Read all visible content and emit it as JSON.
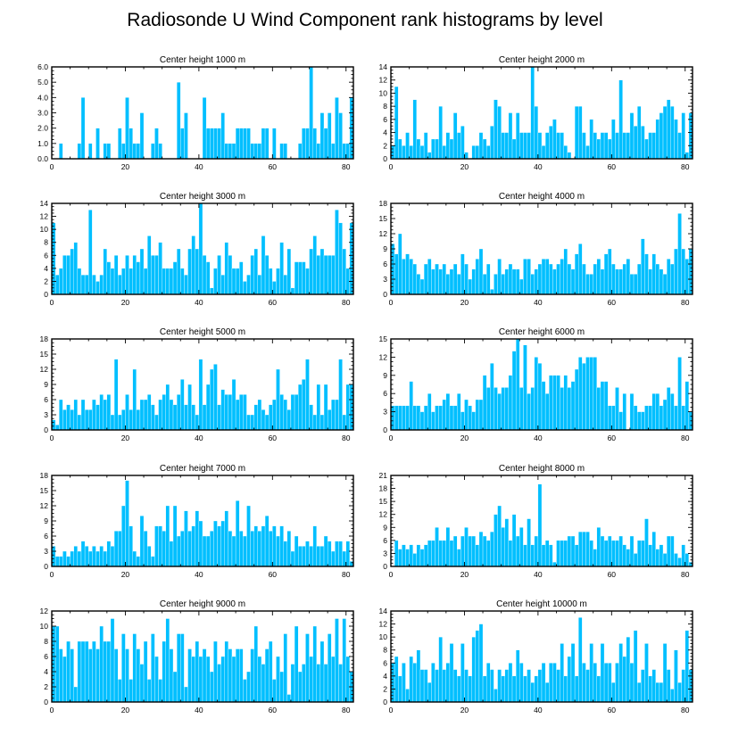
{
  "bar_color": "#00bfff",
  "chart_data": {
    "type": "bar",
    "title": "Radiosonde U Wind Component rank histograms by level",
    "panels": [
      {
        "title": "Center height 1000 m",
        "ylim": [
          0,
          6
        ],
        "yticks": [
          "0.0",
          "1.0",
          "2.0",
          "3.0",
          "4.0",
          "5.0",
          "6.0"
        ],
        "xticks": [
          "0",
          "20",
          "40",
          "60",
          "80"
        ],
        "xlim": [
          0,
          82
        ],
        "values": [
          0,
          0,
          1,
          0,
          0,
          0,
          0,
          1,
          4,
          0,
          1,
          0,
          2,
          0,
          1,
          1,
          0,
          0,
          2,
          1,
          4,
          2,
          1,
          1,
          3,
          0,
          0,
          1,
          2,
          1,
          0,
          0,
          0,
          0,
          5,
          2,
          3,
          0,
          0,
          0,
          0,
          4,
          2,
          2,
          2,
          2,
          3,
          1,
          1,
          1,
          2,
          2,
          2,
          2,
          1,
          1,
          1,
          2,
          2,
          0,
          2,
          0,
          1,
          1,
          0,
          0,
          0,
          1,
          2,
          2,
          6,
          2,
          1,
          3,
          2,
          3,
          1,
          4,
          3,
          1,
          1,
          4
        ]
      },
      {
        "title": "Center height 2000 m",
        "ylim": [
          0,
          14
        ],
        "yticks": [
          "0",
          "2",
          "4",
          "6",
          "8",
          "10",
          "12",
          "14"
        ],
        "xticks": [
          "0",
          "20",
          "40",
          "60",
          "80"
        ],
        "xlim": [
          0,
          82
        ],
        "values": [
          2,
          11,
          3,
          2,
          4,
          2,
          9,
          3,
          2,
          4,
          1,
          3,
          3,
          8,
          2,
          4,
          3,
          7,
          4,
          5,
          1,
          0,
          2,
          2,
          4,
          3,
          2,
          5,
          9,
          8,
          4,
          4,
          7,
          3,
          7,
          4,
          4,
          4,
          14,
          8,
          4,
          2,
          4,
          5,
          6,
          4,
          4,
          2,
          1,
          0,
          8,
          8,
          4,
          2,
          6,
          4,
          3,
          4,
          4,
          3,
          6,
          4,
          12,
          4,
          4,
          7,
          5,
          8,
          5,
          3,
          4,
          4,
          6,
          7,
          8,
          9,
          8,
          6,
          4,
          7,
          1,
          7
        ]
      },
      {
        "title": "Center height 3000 m",
        "ylim": [
          0,
          14
        ],
        "yticks": [
          "0",
          "2",
          "4",
          "6",
          "8",
          "10",
          "12",
          "14"
        ],
        "xticks": [
          "0",
          "20",
          "40",
          "60",
          "80"
        ],
        "xlim": [
          0,
          82
        ],
        "values": [
          11,
          3,
          4,
          6,
          6,
          7,
          8,
          4,
          3,
          3,
          13,
          3,
          2,
          3,
          7,
          5,
          4,
          6,
          3,
          4,
          6,
          4,
          6,
          5,
          7,
          4,
          9,
          6,
          6,
          8,
          4,
          4,
          4,
          5,
          7,
          4,
          3,
          7,
          9,
          7,
          14,
          6,
          5,
          1,
          4,
          6,
          3,
          8,
          6,
          4,
          4,
          5,
          2,
          3,
          6,
          7,
          3,
          9,
          6,
          4,
          2,
          4,
          8,
          3,
          7,
          1,
          5,
          5,
          5,
          4,
          7,
          9,
          6,
          7,
          6,
          6,
          6,
          13,
          11,
          7,
          4,
          11
        ]
      },
      {
        "title": "Center height 4000 m",
        "ylim": [
          0,
          18
        ],
        "yticks": [
          "0",
          "3",
          "6",
          "9",
          "12",
          "15",
          "18"
        ],
        "xticks": [
          "0",
          "20",
          "40",
          "60",
          "80"
        ],
        "xlim": [
          0,
          82
        ],
        "values": [
          10,
          8,
          12,
          7,
          8,
          7,
          6,
          4,
          3,
          6,
          7,
          5,
          6,
          5,
          6,
          4,
          5,
          6,
          4,
          8,
          6,
          3,
          5,
          7,
          9,
          4,
          6,
          1,
          4,
          7,
          4,
          5,
          6,
          5,
          5,
          3,
          7,
          7,
          4,
          5,
          6,
          7,
          7,
          6,
          5,
          6,
          7,
          9,
          6,
          5,
          8,
          10,
          6,
          4,
          4,
          6,
          7,
          5,
          8,
          9,
          6,
          5,
          5,
          6,
          7,
          4,
          4,
          6,
          11,
          8,
          5,
          8,
          6,
          5,
          4,
          7,
          6,
          9,
          16,
          9,
          7,
          9
        ]
      },
      {
        "title": "Center height 5000 m",
        "ylim": [
          0,
          18
        ],
        "yticks": [
          "0",
          "3",
          "6",
          "9",
          "12",
          "15",
          "18"
        ],
        "xticks": [
          "0",
          "20",
          "40",
          "60",
          "80"
        ],
        "xlim": [
          0,
          82
        ],
        "values": [
          2,
          1,
          6,
          4,
          5,
          4,
          6,
          3,
          6,
          4,
          4,
          6,
          5,
          7,
          6,
          7,
          3,
          14,
          3,
          4,
          7,
          4,
          12,
          4,
          6,
          6,
          7,
          5,
          3,
          6,
          7,
          9,
          6,
          5,
          7,
          10,
          5,
          9,
          5,
          3,
          14,
          5,
          9,
          12,
          13,
          5,
          8,
          7,
          7,
          10,
          6,
          7,
          7,
          3,
          3,
          5,
          6,
          4,
          3,
          5,
          6,
          12,
          7,
          6,
          4,
          7,
          7,
          9,
          10,
          14,
          5,
          3,
          9,
          3,
          9,
          4,
          6,
          6,
          14,
          3,
          9,
          9
        ]
      },
      {
        "title": "Center height 6000 m",
        "ylim": [
          0,
          15
        ],
        "yticks": [
          "0",
          "3",
          "6",
          "9",
          "12",
          "15"
        ],
        "xticks": [
          "0",
          "20",
          "40",
          "60",
          "80"
        ],
        "xlim": [
          0,
          82
        ],
        "values": [
          4,
          4,
          4,
          4,
          4,
          8,
          4,
          4,
          3,
          4,
          6,
          3,
          4,
          4,
          5,
          6,
          4,
          4,
          6,
          3,
          5,
          4,
          3,
          5,
          5,
          9,
          7,
          11,
          7,
          6,
          7,
          7,
          9,
          13,
          15,
          7,
          14,
          6,
          7,
          12,
          11,
          8,
          6,
          9,
          9,
          9,
          7,
          9,
          7,
          8,
          10,
          12,
          11,
          12,
          12,
          12,
          7,
          8,
          8,
          4,
          4,
          7,
          3,
          6,
          0,
          6,
          4,
          3,
          3,
          4,
          4,
          6,
          6,
          4,
          5,
          7,
          6,
          4,
          12,
          4,
          8,
          3
        ]
      },
      {
        "title": "Center height 7000 m",
        "ylim": [
          0,
          18
        ],
        "yticks": [
          "0",
          "3",
          "6",
          "9",
          "12",
          "15",
          "18"
        ],
        "xticks": [
          "0",
          "20",
          "40",
          "60",
          "80"
        ],
        "xlim": [
          0,
          82
        ],
        "values": [
          4,
          2,
          2,
          3,
          2,
          3,
          4,
          3,
          5,
          4,
          3,
          4,
          3,
          4,
          3,
          5,
          4,
          7,
          7,
          12,
          17,
          8,
          3,
          2,
          10,
          7,
          4,
          2,
          8,
          8,
          7,
          12,
          5,
          12,
          6,
          7,
          11,
          7,
          8,
          11,
          9,
          6,
          6,
          7,
          9,
          8,
          9,
          11,
          7,
          6,
          13,
          7,
          6,
          12,
          7,
          8,
          7,
          8,
          10,
          7,
          8,
          6,
          8,
          5,
          7,
          3,
          6,
          4,
          4,
          5,
          4,
          8,
          4,
          4,
          6,
          5,
          3,
          5,
          5,
          3,
          5,
          1
        ]
      },
      {
        "title": "Center height 8000 m",
        "ylim": [
          0,
          21
        ],
        "yticks": [
          "0",
          "3",
          "6",
          "9",
          "12",
          "15",
          "18",
          "21"
        ],
        "xticks": [
          "0",
          "20",
          "40",
          "60",
          "80"
        ],
        "xlim": [
          0,
          82
        ],
        "values": [
          0,
          6,
          4,
          5,
          4,
          5,
          3,
          5,
          4,
          5,
          6,
          6,
          9,
          6,
          6,
          9,
          6,
          7,
          4,
          7,
          9,
          7,
          7,
          5,
          8,
          7,
          6,
          8,
          12,
          14,
          9,
          11,
          6,
          12,
          7,
          9,
          5,
          11,
          5,
          7,
          19,
          5,
          6,
          5,
          1,
          6,
          6,
          6,
          7,
          7,
          5,
          8,
          8,
          8,
          6,
          4,
          9,
          7,
          6,
          7,
          6,
          6,
          7,
          5,
          4,
          7,
          3,
          6,
          6,
          11,
          5,
          8,
          4,
          5,
          3,
          7,
          7,
          3,
          2,
          5,
          3,
          1
        ]
      },
      {
        "title": "Center height 9000 m",
        "ylim": [
          0,
          12
        ],
        "yticks": [
          "0",
          "2",
          "4",
          "6",
          "8",
          "10",
          "12"
        ],
        "xticks": [
          "0",
          "20",
          "40",
          "60",
          "80"
        ],
        "xlim": [
          0,
          82
        ],
        "values": [
          10,
          10,
          7,
          6,
          8,
          7,
          2,
          8,
          8,
          8,
          7,
          8,
          7,
          10,
          8,
          8,
          11,
          7,
          3,
          9,
          7,
          3,
          9,
          7,
          5,
          8,
          3,
          9,
          6,
          3,
          8,
          11,
          7,
          4,
          9,
          9,
          2,
          7,
          6,
          8,
          6,
          7,
          6,
          4,
          8,
          5,
          6,
          8,
          7,
          6,
          7,
          7,
          3,
          4,
          7,
          10,
          6,
          5,
          7,
          8,
          3,
          6,
          4,
          9,
          1,
          5,
          10,
          4,
          5,
          9,
          6,
          10,
          5,
          8,
          5,
          9,
          6,
          11,
          5,
          11,
          6,
          4
        ]
      },
      {
        "title": "Center height 10000 m",
        "ylim": [
          0,
          14
        ],
        "yticks": [
          "0",
          "2",
          "4",
          "6",
          "8",
          "10",
          "12",
          "14"
        ],
        "xticks": [
          "0",
          "20",
          "40",
          "60",
          "80"
        ],
        "xlim": [
          0,
          82
        ],
        "values": [
          6,
          7,
          4,
          6,
          2,
          7,
          6,
          8,
          5,
          5,
          3,
          6,
          5,
          10,
          5,
          6,
          9,
          5,
          4,
          9,
          5,
          4,
          10,
          11,
          12,
          4,
          6,
          5,
          2,
          5,
          4,
          5,
          6,
          4,
          8,
          6,
          4,
          5,
          3,
          4,
          5,
          6,
          3,
          6,
          6,
          5,
          9,
          4,
          7,
          9,
          4,
          13,
          6,
          5,
          9,
          6,
          4,
          9,
          6,
          6,
          3,
          6,
          9,
          7,
          10,
          6,
          11,
          3,
          5,
          9,
          4,
          5,
          3,
          3,
          9,
          5,
          2,
          8,
          3,
          5,
          11,
          5
        ]
      }
    ]
  }
}
